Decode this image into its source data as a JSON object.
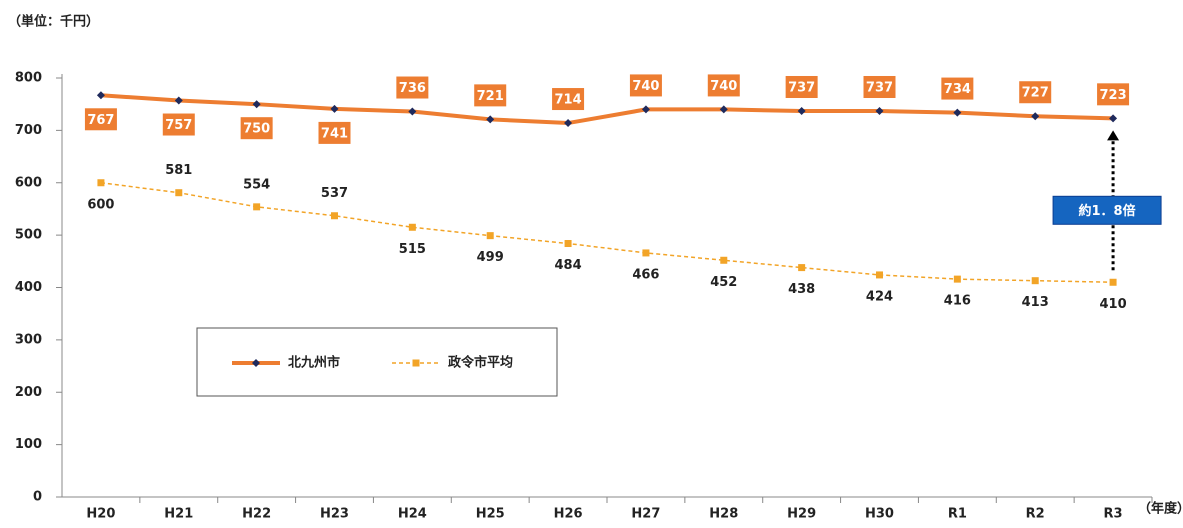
{
  "chart_data": {
    "type": "line",
    "unit_label": "（単位：千円）",
    "x_unit_label": "（年度）",
    "categories": [
      "H20",
      "H21",
      "H22",
      "H23",
      "H24",
      "H25",
      "H26",
      "H27",
      "H28",
      "H29",
      "H30",
      "R1",
      "R2",
      "R3"
    ],
    "series": [
      {
        "name": "北九州市",
        "color": "#ed7d31",
        "marker_color": "#1f2a5c",
        "values": [
          767,
          757,
          750,
          741,
          736,
          721,
          714,
          740,
          740,
          737,
          737,
          734,
          727,
          723
        ]
      },
      {
        "name": "政令市平均",
        "color": "#f2a427",
        "marker_color": "#f2a427",
        "values": [
          600,
          581,
          554,
          537,
          515,
          499,
          484,
          466,
          452,
          438,
          424,
          416,
          413,
          410
        ]
      }
    ],
    "annotation": "約1．8倍",
    "annotation_color": "#1565c0",
    "ylim": [
      0,
      800
    ],
    "yticks": [
      0,
      100,
      200,
      300,
      400,
      500,
      600,
      700,
      800
    ],
    "grid": false
  }
}
